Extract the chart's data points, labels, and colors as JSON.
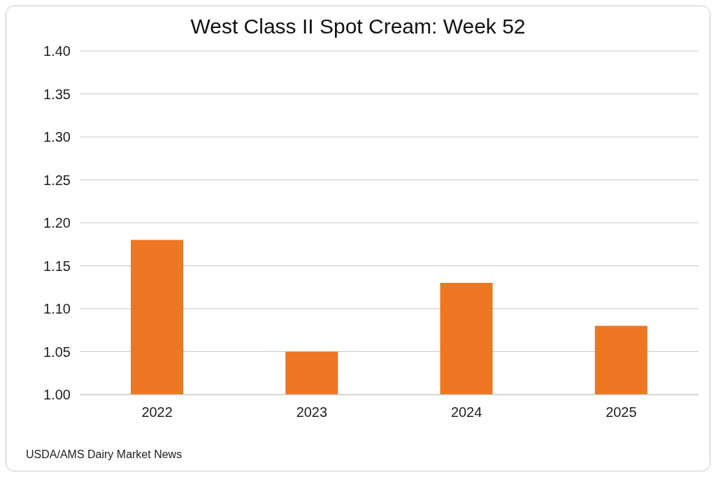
{
  "chart_data": {
    "type": "bar",
    "title": "West Class II Spot Cream: Week 52",
    "categories": [
      "2022",
      "2023",
      "2024",
      "2025"
    ],
    "values": [
      1.18,
      1.05,
      1.13,
      1.08
    ],
    "color": "#ed7722",
    "ylim": [
      1.0,
      1.4
    ],
    "yticks": [
      {
        "value": 1.0,
        "label": "1.00"
      },
      {
        "value": 1.05,
        "label": "1.05"
      },
      {
        "value": 1.1,
        "label": "1.10"
      },
      {
        "value": 1.15,
        "label": "1.15"
      },
      {
        "value": 1.2,
        "label": "1.20"
      },
      {
        "value": 1.25,
        "label": "1.25"
      },
      {
        "value": 1.3,
        "label": "1.30"
      },
      {
        "value": 1.35,
        "label": "1.35"
      },
      {
        "value": 1.4,
        "label": "1.40"
      }
    ],
    "grid": "y",
    "annotations": [
      "USDA/AMS Dairy Market News"
    ]
  }
}
